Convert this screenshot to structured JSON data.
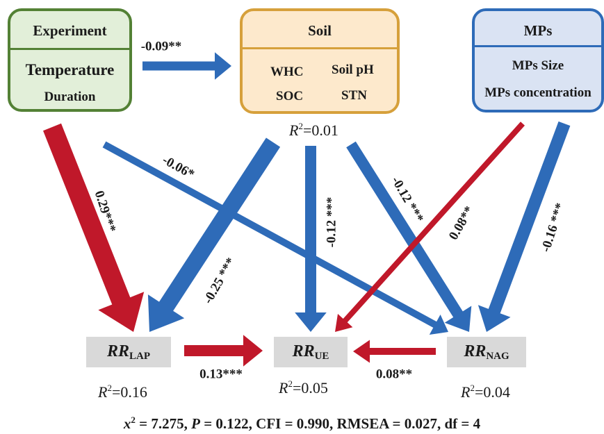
{
  "experiment": {
    "title": "Experiment",
    "items": [
      "Temperature",
      "Duration"
    ]
  },
  "soil": {
    "title": "Soil",
    "items": [
      "WHC",
      "Soil pH",
      "SOC",
      "STN"
    ],
    "r2_label": "R",
    "r2_sup": "2",
    "r2_value": "=0.01"
  },
  "mps": {
    "title": "MPs",
    "items": [
      "MPs Size",
      "MPs concentration"
    ]
  },
  "outcomes": [
    {
      "name": "RR",
      "sub": "LAP",
      "r2_label": "R",
      "r2_sup": "2",
      "r2_value": "=0.16"
    },
    {
      "name": "RR",
      "sub": "UE",
      "r2_label": "R",
      "r2_sup": "2",
      "r2_value": "=0.05"
    },
    {
      "name": "RR",
      "sub": "NAG",
      "r2_label": "R",
      "r2_sup": "2",
      "r2_value": "=0.04"
    }
  ],
  "paths": [
    {
      "from": "Experiment",
      "to": "Soil",
      "coefficient": "-0.09**",
      "sign": "negative"
    },
    {
      "from": "Experiment",
      "to": "RR_LAP",
      "coefficient": "0.29***",
      "sign": "positive"
    },
    {
      "from": "Experiment",
      "to": "RR_NAG",
      "coefficient": "-0.06*",
      "sign": "negative"
    },
    {
      "from": "Soil",
      "to": "RR_LAP",
      "coefficient": "-0.25 ***",
      "sign": "negative"
    },
    {
      "from": "Soil",
      "to": "RR_UE",
      "coefficient": "-0.12 ***",
      "sign": "negative"
    },
    {
      "from": "Soil",
      "to": "RR_NAG",
      "coefficient": "-0.12 ***",
      "sign": "negative"
    },
    {
      "from": "MPs",
      "to": "RR_UE",
      "coefficient": "0.08**",
      "sign": "positive"
    },
    {
      "from": "MPs",
      "to": "RR_NAG",
      "coefficient": "-0.16 ***",
      "sign": "negative"
    },
    {
      "from": "RR_LAP",
      "to": "RR_UE",
      "coefficient": "0.13***",
      "sign": "positive"
    },
    {
      "from": "RR_NAG",
      "to": "RR_UE",
      "coefficient": "0.08**",
      "sign": "positive"
    }
  ],
  "fit": {
    "chi_symbol": "x",
    "chi_sup": "2",
    "chi_value": " = 7.275, ",
    "p_symbol": "P",
    "p_value": " = 0.122, CFI = 0.990, RMSEA = 0.027, df = 4"
  },
  "colors": {
    "positive": "#c0182a",
    "negative": "#2e6bb8",
    "experiment_fill": "#e2efd9",
    "experiment_border": "#538135",
    "soil_fill": "#fde9cc",
    "soil_border": "#d6a03b",
    "mps_fill": "#dae3f3",
    "mps_border": "#2e6bb8",
    "rr_fill": "#d9d9d9"
  }
}
